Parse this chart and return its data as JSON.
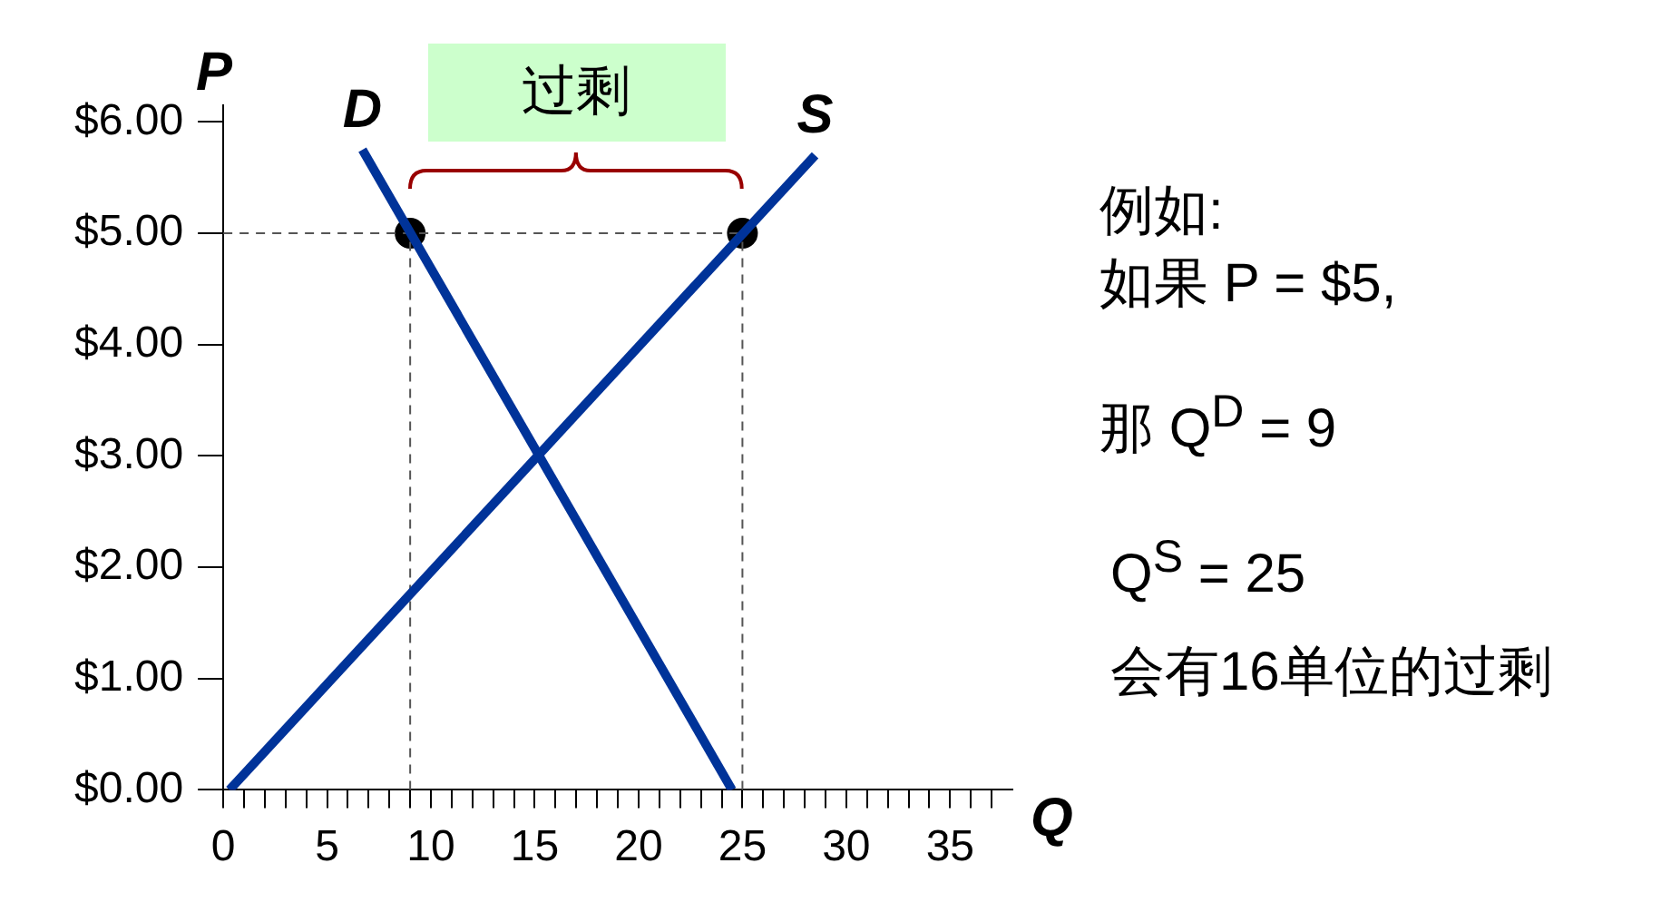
{
  "chart_data": {
    "type": "line",
    "xlabel": "Q",
    "ylabel": "P",
    "series": [
      {
        "name": "D",
        "color": "#003399",
        "x": [
          6.7,
          24.5
        ],
        "values": [
          5.75,
          0
        ]
      },
      {
        "name": "S",
        "color": "#003399",
        "x": [
          0.3,
          28.5
        ],
        "values": [
          0,
          5.7
        ]
      },
      {
        "type": "scatter",
        "color": "#000000",
        "x": [
          9,
          25
        ],
        "values": [
          5,
          5
        ],
        "marker": "circle"
      },
      {
        "color": "#555555",
        "line_style": "dashed",
        "x": [
          0,
          25
        ],
        "values": [
          5,
          5
        ]
      },
      {
        "color": "#555555",
        "line_style": "dashed",
        "x": [
          9,
          9
        ],
        "values": [
          0,
          5
        ]
      },
      {
        "color": "#555555",
        "line_style": "dashed",
        "x": [
          25,
          25
        ],
        "values": [
          0,
          5
        ]
      }
    ],
    "xlim": [
      0,
      38
    ],
    "xticks": [
      0,
      {
        "value": 1,
        "label": null
      },
      {
        "value": 2,
        "label": null
      },
      {
        "value": 3,
        "label": null
      },
      {
        "value": 4,
        "label": null
      },
      5,
      {
        "value": 6,
        "label": null
      },
      {
        "value": 7,
        "label": null
      },
      {
        "value": 8,
        "label": null
      },
      {
        "value": 9,
        "label": null
      },
      10,
      {
        "value": 11,
        "label": null
      },
      {
        "value": 12,
        "label": null
      },
      {
        "value": 13,
        "label": null
      },
      {
        "value": 14,
        "label": null
      },
      15,
      {
        "value": 16,
        "label": null
      },
      {
        "value": 17,
        "label": null
      },
      {
        "value": 18,
        "label": null
      },
      {
        "value": 19,
        "label": null
      },
      20,
      {
        "value": 21,
        "label": null
      },
      {
        "value": 22,
        "label": null
      },
      {
        "value": 23,
        "label": null
      },
      {
        "value": 24,
        "label": null
      },
      25,
      {
        "value": 26,
        "label": null
      },
      {
        "value": 27,
        "label": null
      },
      {
        "value": 28,
        "label": null
      },
      {
        "value": 29,
        "label": null
      },
      30,
      {
        "value": 31,
        "label": null
      },
      {
        "value": 32,
        "label": null
      },
      {
        "value": 33,
        "label": null
      },
      {
        "value": 34,
        "label": null
      },
      35,
      {
        "value": 36,
        "label": null
      },
      {
        "value": 37,
        "label": null
      }
    ],
    "ylim": [
      0,
      6.15
    ],
    "yticks": [
      {
        "value": 0,
        "label": "$0.00"
      },
      {
        "value": 1,
        "label": "$1.00"
      },
      {
        "value": 2,
        "label": "$2.00"
      },
      {
        "value": 3,
        "label": "$3.00"
      },
      {
        "value": 4,
        "label": "$4.00"
      },
      {
        "value": 5,
        "label": "$5.00"
      },
      {
        "value": 6,
        "label": "$6.00"
      }
    ],
    "grid": false,
    "legend": false,
    "line_style": "solid",
    "marker": "none",
    "annotations": [
      "过剩",
      "例如:",
      "如果 P = $5,",
      "那 Q$^{D}$ = 9",
      "Q$^{S}$ = 25",
      "会有16单位的过剩"
    ]
  }
}
